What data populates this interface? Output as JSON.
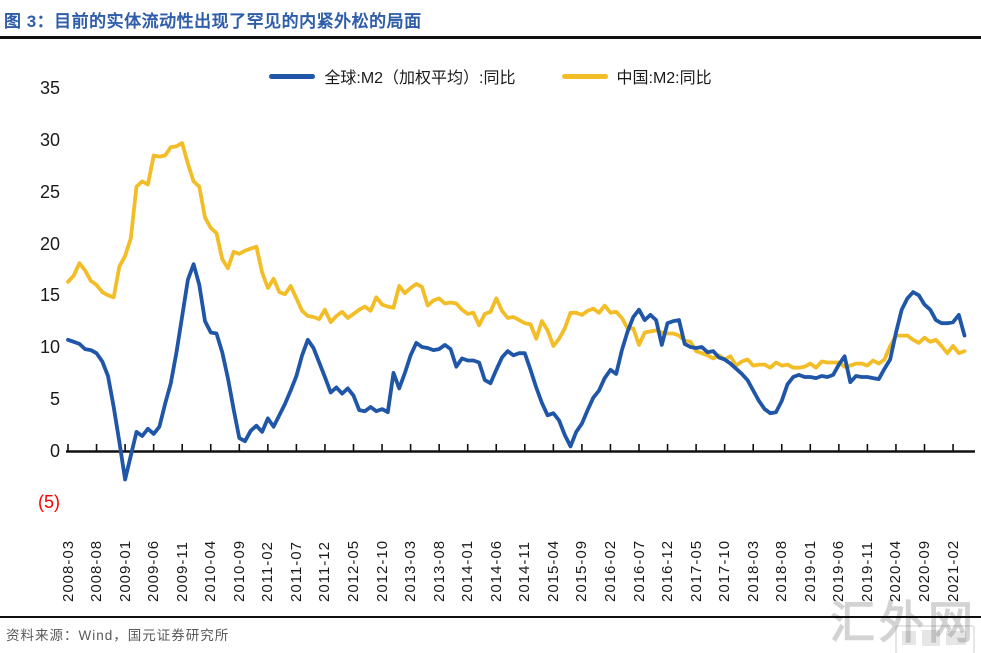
{
  "header": {
    "title": "图 3：目前的实体流动性出现了罕见的内紧外松的局面"
  },
  "footer": {
    "source": "资料来源：Wind，国元证券研究所"
  },
  "watermark": {
    "text": "汇外网"
  },
  "chart_data": {
    "type": "line",
    "title": "图 3：目前的实体流动性出现了罕见的内紧外松的局面",
    "xlabel": "",
    "ylabel": "",
    "ylim": [
      -5,
      35
    ],
    "grid": false,
    "legend_position": "top",
    "x_start": "2008-03",
    "x_freq": "monthly",
    "months_per_tick": 5,
    "y_ticks": [
      {
        "label": "35",
        "value": 35,
        "color": "#1a1a1a"
      },
      {
        "label": "30",
        "value": 30,
        "color": "#1a1a1a"
      },
      {
        "label": "25",
        "value": 25,
        "color": "#1a1a1a"
      },
      {
        "label": "20",
        "value": 20,
        "color": "#1a1a1a"
      },
      {
        "label": "15",
        "value": 15,
        "color": "#1a1a1a"
      },
      {
        "label": "10",
        "value": 10,
        "color": "#1a1a1a"
      },
      {
        "label": "5",
        "value": 5,
        "color": "#1a1a1a"
      },
      {
        "label": "0",
        "value": 0,
        "color": "#1a1a1a"
      },
      {
        "label": "(5)",
        "value": -5,
        "color": "#FF0000"
      }
    ],
    "categories": [
      "2008-03",
      "2008-08",
      "2009-01",
      "2009-06",
      "2009-11",
      "2010-04",
      "2010-09",
      "2011-02",
      "2011-07",
      "2011-12",
      "2012-05",
      "2012-10",
      "2013-03",
      "2013-08",
      "2014-01",
      "2014-06",
      "2014-11",
      "2015-04",
      "2015-09",
      "2016-02",
      "2016-07",
      "2016-12",
      "2017-05",
      "2017-10",
      "2018-03",
      "2018-08",
      "2019-01",
      "2019-06",
      "2019-11",
      "2020-04",
      "2020-09",
      "2021-02"
    ],
    "series": [
      {
        "id": "global-m2",
        "name": "全球:M2（加权平均）:同比",
        "color": "#1F56A8",
        "values": [
          10.7,
          10.5,
          10.3,
          9.8,
          9.7,
          9.4,
          8.6,
          7.2,
          4.2,
          0.8,
          -2.8,
          -0.5,
          1.8,
          1.4,
          2.1,
          1.6,
          2.3,
          4.5,
          6.5,
          9.5,
          13.0,
          16.5,
          18.0,
          16.0,
          12.5,
          11.4,
          11.3,
          9.5,
          7.0,
          4.0,
          1.2,
          0.9,
          1.9,
          2.4,
          1.8,
          3.1,
          2.3,
          3.4,
          4.5,
          5.8,
          7.2,
          9.2,
          10.7,
          9.9,
          8.5,
          7.1,
          5.6,
          6.1,
          5.5,
          6.0,
          5.3,
          3.9,
          3.8,
          4.2,
          3.8,
          4.0,
          3.7,
          7.5,
          6.0,
          7.5,
          9.2,
          10.4,
          10.0,
          9.9,
          9.7,
          9.8,
          10.2,
          9.8,
          8.1,
          8.9,
          8.7,
          8.7,
          8.5,
          6.8,
          6.5,
          7.8,
          9.0,
          9.6,
          9.2,
          9.4,
          9.4,
          7.8,
          6.1,
          4.6,
          3.4,
          3.6,
          2.9,
          1.5,
          0.4,
          1.8,
          2.6,
          3.9,
          5.1,
          5.8,
          7.0,
          7.8,
          7.4,
          9.7,
          11.5,
          12.9,
          13.6,
          12.6,
          13.1,
          12.6,
          10.2,
          12.3,
          12.5,
          12.6,
          10.3,
          10.0,
          9.9,
          10.0,
          9.5,
          9.6,
          9.0,
          8.8,
          8.4,
          7.9,
          7.4,
          6.8,
          5.8,
          4.8,
          4.0,
          3.6,
          3.7,
          4.8,
          6.4,
          7.1,
          7.3,
          7.1,
          7.1,
          7.0,
          7.2,
          7.1,
          7.3,
          8.3,
          9.1,
          6.6,
          7.2,
          7.1,
          7.1,
          7.0,
          6.9,
          7.9,
          8.8,
          11.4,
          13.6,
          14.7,
          15.3,
          15.0,
          14.1,
          13.6,
          12.6,
          12.3,
          12.3,
          12.4,
          13.1,
          11.1
        ]
      },
      {
        "id": "china-m2",
        "name": "中国:M2:同比",
        "color": "#F3BD27",
        "values": [
          16.3,
          16.9,
          18.1,
          17.4,
          16.4,
          16.0,
          15.3,
          15.0,
          14.8,
          17.8,
          18.8,
          20.5,
          25.5,
          26.0,
          25.7,
          28.5,
          28.4,
          28.5,
          29.3,
          29.4,
          29.7,
          27.7,
          26.0,
          25.5,
          22.5,
          21.5,
          21.0,
          18.5,
          17.6,
          19.2,
          19.0,
          19.3,
          19.5,
          19.7,
          17.2,
          15.7,
          16.6,
          15.3,
          15.1,
          15.9,
          14.7,
          13.5,
          13.0,
          12.9,
          12.7,
          13.6,
          12.4,
          13.0,
          13.4,
          12.8,
          13.2,
          13.6,
          13.9,
          13.5,
          14.8,
          14.1,
          13.9,
          13.8,
          15.9,
          15.2,
          15.7,
          16.1,
          15.8,
          14.0,
          14.5,
          14.7,
          14.2,
          14.3,
          14.2,
          13.6,
          13.2,
          13.3,
          12.1,
          13.2,
          13.4,
          14.7,
          13.5,
          12.8,
          12.9,
          12.6,
          12.3,
          12.2,
          10.8,
          12.5,
          11.6,
          10.1,
          10.8,
          11.8,
          13.3,
          13.3,
          13.1,
          13.5,
          13.7,
          13.3,
          14.0,
          13.3,
          13.4,
          12.8,
          11.8,
          11.8,
          10.2,
          11.4,
          11.5,
          11.6,
          11.4,
          11.3,
          11.3,
          11.1,
          10.6,
          10.5,
          9.6,
          9.4,
          9.2,
          8.9,
          9.2,
          8.8,
          9.1,
          8.2,
          8.6,
          8.8,
          8.2,
          8.3,
          8.3,
          8.0,
          8.5,
          8.2,
          8.3,
          8.0,
          8.0,
          8.1,
          8.4,
          8.0,
          8.6,
          8.5,
          8.5,
          8.5,
          8.1,
          8.2,
          8.4,
          8.4,
          8.2,
          8.7,
          8.4,
          8.8,
          10.1,
          11.1,
          11.1,
          11.1,
          10.7,
          10.4,
          10.9,
          10.5,
          10.7,
          10.1,
          9.4,
          10.1,
          9.4,
          9.6
        ]
      }
    ]
  }
}
